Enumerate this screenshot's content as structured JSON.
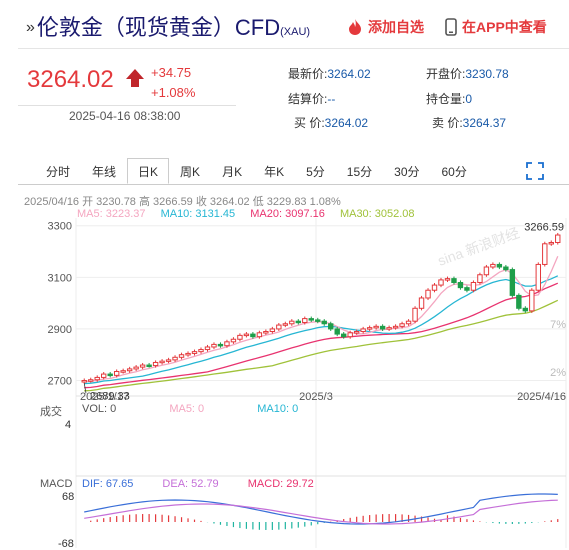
{
  "header": {
    "arrow": "»",
    "title": "伦敦金（现货黄金）CFD",
    "subtitle": "(XAU)",
    "add_fav": "添加自选",
    "app_view": "在APP中查看",
    "add_fav_icon": "flame-icon",
    "app_icon": "phone-icon"
  },
  "quote": {
    "price": "3264.02",
    "change": "+34.75",
    "change_pct": "+1.08%",
    "datetime": "2025-04-16 08:38:00",
    "up_color": "#e4393c"
  },
  "stats": {
    "latest_label": "最新价:",
    "latest": "3264.02",
    "settle_label": "结算价:",
    "settle": "--",
    "bid_label": "买  价:",
    "bid": "3264.02",
    "open_label": "开盘价:",
    "open": "3230.78",
    "hold_label": "持仓量:",
    "hold": "0",
    "ask_label": "卖  价:",
    "ask": "3264.37"
  },
  "tabs": [
    "分时",
    "年线",
    "日K",
    "周K",
    "月K",
    "年K",
    "5分",
    "15分",
    "30分",
    "60分"
  ],
  "active_tab": "日K",
  "ohlc_line": "2025/04/16 开 3230.78 高 3266.59 收 3264.02 低 3229.83 1.08%",
  "ma": {
    "ma5": "MA5: 3223.37",
    "ma10": "MA10: 3131.45",
    "ma20": "MA20: 3097.16",
    "ma30": "MA30: 3052.08",
    "ma5_color": "#f4a6c0",
    "ma10_color": "#26b6d3",
    "ma20_color": "#e8336f",
    "ma30_color": "#a0c23a"
  },
  "chart_data": {
    "type": "candlestick",
    "y_ticks": [
      "3300",
      "3100",
      "2900",
      "2700"
    ],
    "right_ticks": [
      "7%",
      "2%"
    ],
    "x_ticks": [
      "2025/1/17",
      "2025/3",
      "2025/4/16"
    ],
    "ylim": [
      2640,
      3330
    ],
    "high_label": "3266.59",
    "low_label": "2689.33",
    "watermark": "sina 新浪财经",
    "closes": [
      2700,
      2703,
      2712,
      2725,
      2720,
      2735,
      2738,
      2745,
      2752,
      2760,
      2758,
      2770,
      2775,
      2780,
      2790,
      2800,
      2805,
      2812,
      2820,
      2830,
      2840,
      2835,
      2850,
      2860,
      2875,
      2880,
      2870,
      2885,
      2890,
      2900,
      2915,
      2920,
      2930,
      2925,
      2940,
      2935,
      2930,
      2920,
      2900,
      2880,
      2870,
      2885,
      2890,
      2900,
      2905,
      2910,
      2900,
      2905,
      2910,
      2920,
      2930,
      2980,
      3020,
      3050,
      3070,
      3090,
      3095,
      3080,
      3060,
      3050,
      3080,
      3110,
      3140,
      3150,
      3140,
      3130,
      3030,
      2980,
      2970,
      3050,
      3150,
      3230,
      3235,
      3264
    ],
    "ma_values": {
      "MA5": 3223.37,
      "MA10": 3131.45,
      "MA20": 3097.16,
      "MA30": 3052.08
    }
  },
  "volume": {
    "label": "成交",
    "vol": "VOL: 0",
    "ma5": "MA5: 0",
    "ma10": "MA10: 0",
    "tick": "4"
  },
  "macd": {
    "label": "MACD",
    "dif": "DIF: 67.65",
    "dea": "DEA: 52.79",
    "macd": "MACD: 29.72",
    "top": "68",
    "bottom": "-68",
    "dif_color": "#3a6fd8",
    "dea_color": "#c56fd8"
  }
}
